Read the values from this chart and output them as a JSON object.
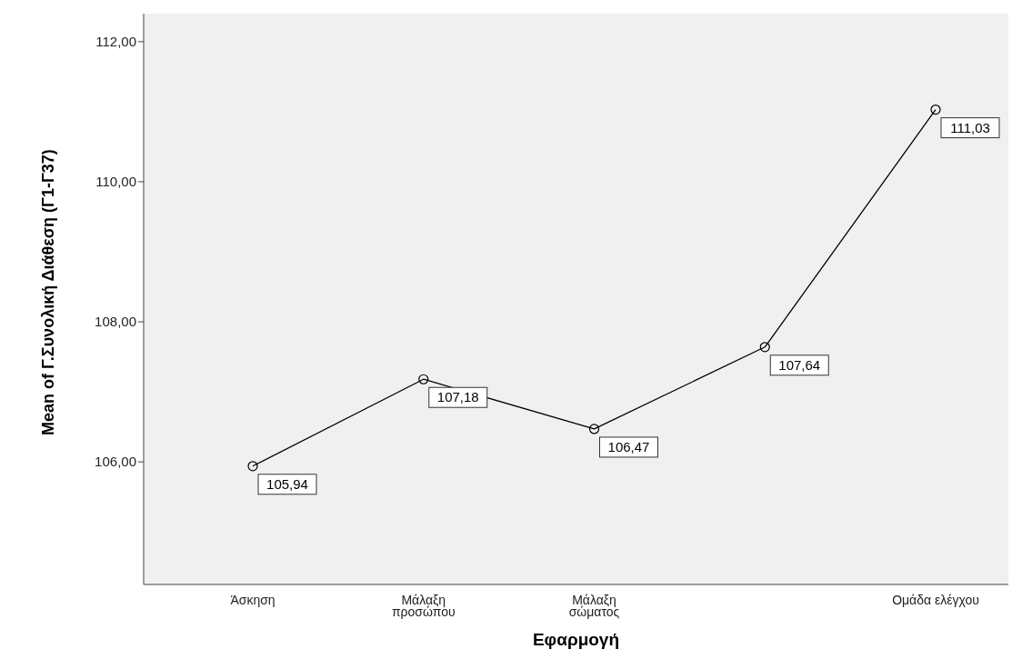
{
  "chart_data": {
    "type": "line",
    "xlabel": "Εφαρμογή",
    "ylabel": "Mean of Γ.Συνολική Διάθεση (Γ1-Γ37)",
    "categories": [
      "Άσκηση",
      "Μάλαξη\nπροσώπου",
      "Μάλαξη\nσώματος",
      null,
      "Ομάδα ελέγχου"
    ],
    "values": [
      105.94,
      107.18,
      106.47,
      107.64,
      111.03
    ],
    "value_labels": [
      "105,94",
      "107,18",
      "106,47",
      "107,64",
      "111,03"
    ],
    "color": "#000000",
    "marker": "circle",
    "line_style": "solid",
    "ylim": [
      104.25,
      112.4
    ],
    "yticks": [
      {
        "value": 106,
        "label": "106,00"
      },
      {
        "value": 108,
        "label": "108,00"
      },
      {
        "value": 110,
        "label": "110,00"
      },
      {
        "value": 112,
        "label": "112,00"
      }
    ]
  }
}
